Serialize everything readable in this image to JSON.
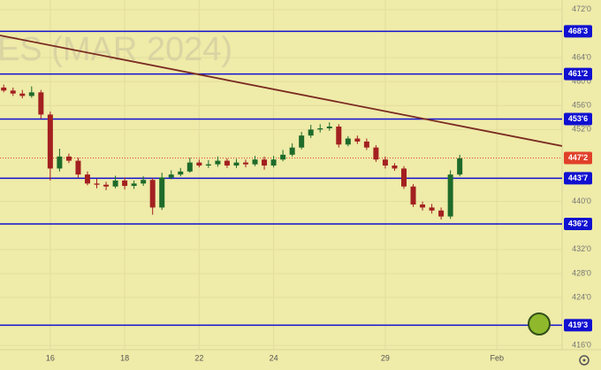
{
  "chart_data": {
    "type": "candlestick",
    "watermark": "ES (MAR 2024)",
    "x": [
      -1.25,
      -1,
      -0.75,
      -0.5,
      -0.25,
      0,
      0.25,
      0.5,
      0.75,
      1,
      1.25,
      1.5,
      1.75,
      2,
      2.25,
      2.5,
      2.75,
      3,
      3.25,
      3.5,
      3.75,
      4,
      4.25,
      4.5,
      4.75,
      5,
      5.25,
      5.5,
      5.75,
      6,
      6.25,
      6.5,
      6.75,
      7,
      7.25,
      7.5,
      7.75,
      8,
      8.25,
      8.5,
      8.75,
      9,
      9.25,
      9.5,
      9.75,
      10,
      10.25,
      10.5,
      10.75,
      11
    ],
    "open": [
      459.0,
      458.5,
      458.0,
      457.6,
      458.2,
      454.5,
      445.5,
      447.5,
      446.8,
      444.5,
      443.0,
      442.8,
      442.5,
      443.5,
      442.6,
      443.0,
      443.6,
      439.0,
      444.0,
      444.5,
      445.0,
      446.5,
      446.0,
      446.2,
      446.8,
      446.0,
      446.5,
      446.2,
      447.0,
      446.0,
      447.0,
      447.8,
      449.0,
      451.0,
      452.0,
      452.2,
      452.5,
      449.5,
      450.5,
      450.0,
      449.0,
      447.0,
      446.0,
      445.5,
      442.5,
      439.5,
      439.0,
      438.5,
      437.5,
      444.5
    ],
    "high": [
      459.5,
      459.0,
      458.6,
      459.2,
      458.6,
      455.0,
      448.8,
      448.0,
      447.3,
      445.0,
      443.8,
      443.3,
      444.3,
      444.0,
      443.5,
      444.2,
      443.9,
      444.8,
      445.2,
      445.6,
      447.3,
      447.0,
      446.9,
      447.5,
      447.2,
      447.1,
      447.0,
      447.6,
      447.5,
      447.6,
      448.6,
      449.7,
      451.6,
      452.8,
      452.9,
      453.2,
      452.9,
      450.9,
      451.0,
      450.5,
      449.4,
      447.5,
      446.4,
      445.9,
      442.9,
      440.0,
      439.6,
      439.0,
      445.2,
      447.8
    ],
    "low": [
      458.2,
      457.6,
      457.2,
      457.3,
      453.8,
      443.5,
      445.0,
      446.4,
      444.0,
      442.7,
      442.2,
      441.9,
      442.2,
      442.0,
      442.1,
      442.6,
      437.8,
      438.6,
      443.7,
      444.2,
      444.8,
      445.7,
      445.6,
      445.8,
      445.6,
      445.6,
      445.7,
      445.9,
      445.3,
      445.7,
      446.7,
      447.5,
      448.7,
      450.6,
      451.5,
      451.8,
      449.0,
      449.2,
      449.6,
      448.6,
      446.6,
      445.5,
      445.1,
      442.1,
      439.1,
      438.5,
      438.0,
      437.0,
      437.1,
      444.2
    ],
    "close": [
      458.5,
      458.0,
      457.6,
      458.2,
      454.5,
      445.5,
      447.5,
      446.8,
      444.5,
      443.0,
      442.8,
      442.5,
      443.5,
      442.6,
      443.0,
      443.6,
      439.0,
      444.0,
      444.5,
      445.0,
      446.5,
      446.0,
      446.2,
      446.8,
      446.0,
      446.5,
      446.2,
      447.0,
      446.0,
      447.0,
      447.8,
      449.0,
      451.0,
      452.0,
      452.2,
      452.5,
      449.5,
      450.5,
      450.0,
      449.0,
      447.0,
      446.0,
      445.5,
      442.5,
      439.5,
      439.0,
      438.5,
      437.5,
      444.5,
      447.2
    ],
    "up_color": "#1e6b2a",
    "down_color": "#a32020",
    "xlim": [
      -1.35,
      13.75
    ],
    "xticks": [
      {
        "value": 0,
        "label": "16"
      },
      {
        "value": 2,
        "label": "18"
      },
      {
        "value": 4,
        "label": "22"
      },
      {
        "value": 6,
        "label": "24"
      },
      {
        "value": 9,
        "label": "29"
      },
      {
        "value": 12,
        "label": "Feb"
      }
    ],
    "ylim": [
      415.3,
      473.6
    ],
    "yticks": [
      {
        "value": 472,
        "label": "472'0"
      },
      {
        "value": 464,
        "label": "464'0"
      },
      {
        "value": 460,
        "label": "460'0"
      },
      {
        "value": 456,
        "label": "456'0"
      },
      {
        "value": 452,
        "label": "452'0"
      },
      {
        "value": 440,
        "label": "440'0"
      },
      {
        "value": 432,
        "label": "432'0"
      },
      {
        "value": 428,
        "label": "428'0"
      },
      {
        "value": 424,
        "label": "424'0"
      },
      {
        "value": 416,
        "label": "416'0"
      }
    ],
    "grid": true,
    "levels": [
      {
        "value": 468.375,
        "label": "468'3"
      },
      {
        "value": 461.25,
        "label": "461'2"
      },
      {
        "value": 453.75,
        "label": "453'6"
      },
      {
        "value": 443.875,
        "label": "443'7"
      },
      {
        "value": 436.25,
        "label": "436'2"
      },
      {
        "value": 419.375,
        "label": "419'3"
      }
    ],
    "level_color": "#1010d0",
    "last_price": {
      "value": 447.25,
      "label": "447'2"
    },
    "last_color": "#e0402a",
    "trendline": {
      "x": [
        -1.35,
        13.75
      ],
      "y": [
        467.7,
        449.25
      ]
    },
    "trend_color": "#7a2b22"
  }
}
